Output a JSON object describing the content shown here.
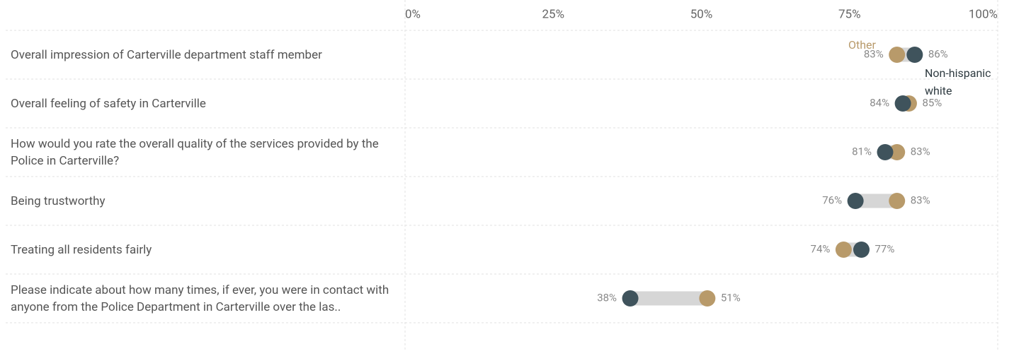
{
  "chart_data": {
    "type": "dumbbell",
    "categories": [
      "Overall impression of Carterville department staff member",
      "Overall feeling of safety in Carterville",
      "How would you rate the overall quality of the services provided by the Police in Carterville?",
      "Being trustworthy",
      "Treating all residents fairly",
      "Please indicate about how many times, if ever, you were in contact with anyone from the Police Department in Carterville over the las.."
    ],
    "series": [
      {
        "name": "Other",
        "color": "#b89a6a",
        "values": [
          83,
          85,
          83,
          83,
          74,
          51
        ],
        "value_labels": [
          "83%",
          "85%",
          "83%",
          "83%",
          "74%",
          "51%"
        ]
      },
      {
        "name": "Non-hispanic white",
        "color": "#3f535c",
        "values": [
          86,
          84,
          81,
          76,
          77,
          38
        ],
        "value_labels": [
          "86%",
          "84%",
          "81%",
          "76%",
          "77%",
          "38%"
        ]
      }
    ],
    "xlim": [
      0,
      100
    ],
    "xticks": [
      {
        "value": 0,
        "label": "0%"
      },
      {
        "value": 25,
        "label": "25%"
      },
      {
        "value": 50,
        "label": "50%"
      },
      {
        "value": 75,
        "label": "75%"
      },
      {
        "value": 100,
        "label": "100%"
      }
    ]
  }
}
